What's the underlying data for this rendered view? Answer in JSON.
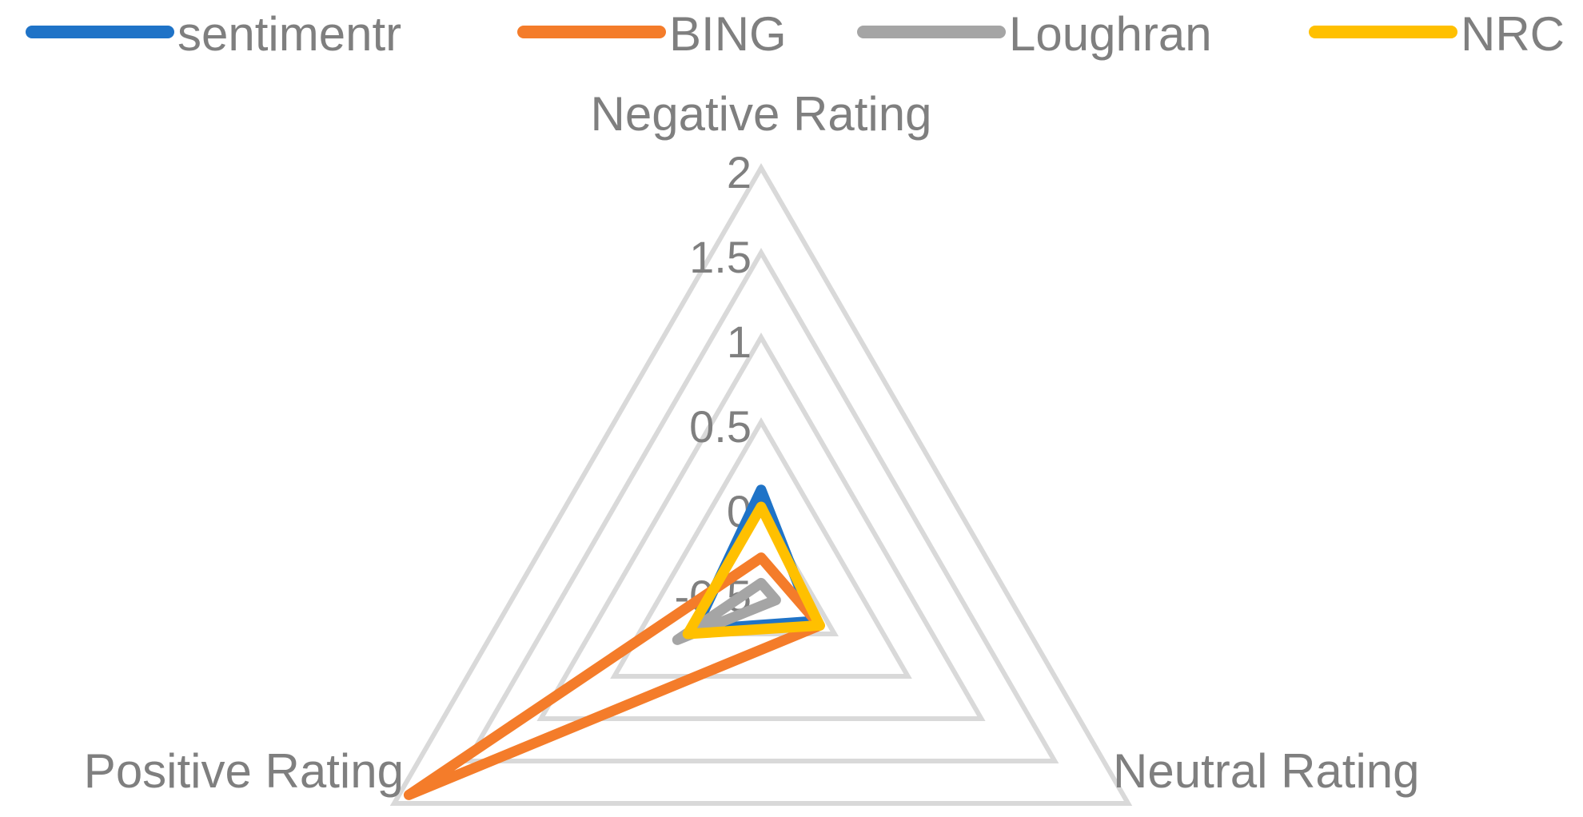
{
  "chart_data": {
    "type": "radar",
    "axes": [
      "Negative Rating",
      "Neutral Rating",
      "Positive Rating"
    ],
    "rlim": [
      -0.5,
      2
    ],
    "ticks": [
      "2",
      "1.5",
      "1",
      "0.5",
      "0",
      "-0.5"
    ],
    "tick_values": [
      2,
      1.5,
      1,
      0.5,
      0,
      -0.5
    ],
    "grid": true,
    "legend_position": "top",
    "series": [
      {
        "name": "sentimentr",
        "color": "#1f73c7",
        "values": [
          0.1,
          -0.15,
          -0.05
        ]
      },
      {
        "name": "BING",
        "color": "#f47c2a",
        "values": [
          -0.3,
          -0.1,
          1.9
        ]
      },
      {
        "name": "Loughran",
        "color": "#a5a5a5",
        "values": [
          -0.45,
          -0.4,
          0.07
        ]
      },
      {
        "name": "NRC",
        "color": "#ffc000",
        "values": [
          0.0,
          -0.1,
          0.0
        ]
      }
    ]
  }
}
